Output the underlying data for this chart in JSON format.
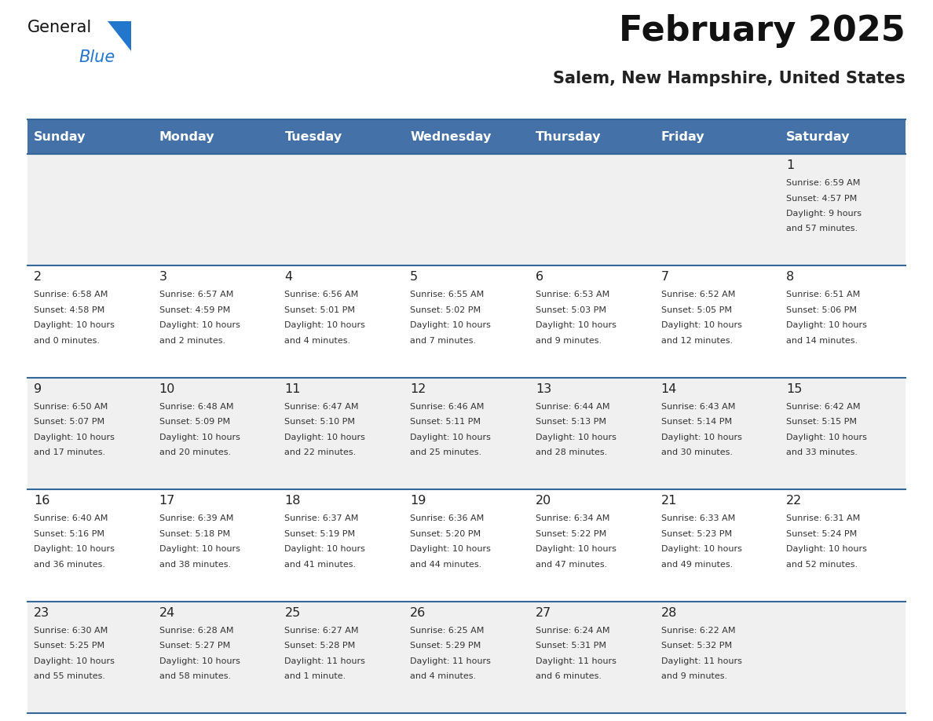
{
  "title": "February 2025",
  "subtitle": "Salem, New Hampshire, United States",
  "days_of_week": [
    "Sunday",
    "Monday",
    "Tuesday",
    "Wednesday",
    "Thursday",
    "Friday",
    "Saturday"
  ],
  "header_bg": "#4472A8",
  "header_text_color": "#FFFFFF",
  "cell_bg_odd": "#F0F0F0",
  "cell_bg_even": "#FFFFFF",
  "border_color": "#336699",
  "day_number_color": "#222222",
  "cell_text_color": "#333333",
  "title_color": "#111111",
  "subtitle_color": "#222222",
  "logo_general_color": "#111111",
  "logo_blue_color": "#2277CC",
  "logo_triangle_color": "#2277CC",
  "calendar": [
    [
      null,
      null,
      null,
      null,
      null,
      null,
      {
        "day": 1,
        "sunrise": "6:59 AM",
        "sunset": "4:57 PM",
        "daylight_line1": "Daylight: 9 hours",
        "daylight_line2": "and 57 minutes."
      }
    ],
    [
      {
        "day": 2,
        "sunrise": "6:58 AM",
        "sunset": "4:58 PM",
        "daylight_line1": "Daylight: 10 hours",
        "daylight_line2": "and 0 minutes."
      },
      {
        "day": 3,
        "sunrise": "6:57 AM",
        "sunset": "4:59 PM",
        "daylight_line1": "Daylight: 10 hours",
        "daylight_line2": "and 2 minutes."
      },
      {
        "day": 4,
        "sunrise": "6:56 AM",
        "sunset": "5:01 PM",
        "daylight_line1": "Daylight: 10 hours",
        "daylight_line2": "and 4 minutes."
      },
      {
        "day": 5,
        "sunrise": "6:55 AM",
        "sunset": "5:02 PM",
        "daylight_line1": "Daylight: 10 hours",
        "daylight_line2": "and 7 minutes."
      },
      {
        "day": 6,
        "sunrise": "6:53 AM",
        "sunset": "5:03 PM",
        "daylight_line1": "Daylight: 10 hours",
        "daylight_line2": "and 9 minutes."
      },
      {
        "day": 7,
        "sunrise": "6:52 AM",
        "sunset": "5:05 PM",
        "daylight_line1": "Daylight: 10 hours",
        "daylight_line2": "and 12 minutes."
      },
      {
        "day": 8,
        "sunrise": "6:51 AM",
        "sunset": "5:06 PM",
        "daylight_line1": "Daylight: 10 hours",
        "daylight_line2": "and 14 minutes."
      }
    ],
    [
      {
        "day": 9,
        "sunrise": "6:50 AM",
        "sunset": "5:07 PM",
        "daylight_line1": "Daylight: 10 hours",
        "daylight_line2": "and 17 minutes."
      },
      {
        "day": 10,
        "sunrise": "6:48 AM",
        "sunset": "5:09 PM",
        "daylight_line1": "Daylight: 10 hours",
        "daylight_line2": "and 20 minutes."
      },
      {
        "day": 11,
        "sunrise": "6:47 AM",
        "sunset": "5:10 PM",
        "daylight_line1": "Daylight: 10 hours",
        "daylight_line2": "and 22 minutes."
      },
      {
        "day": 12,
        "sunrise": "6:46 AM",
        "sunset": "5:11 PM",
        "daylight_line1": "Daylight: 10 hours",
        "daylight_line2": "and 25 minutes."
      },
      {
        "day": 13,
        "sunrise": "6:44 AM",
        "sunset": "5:13 PM",
        "daylight_line1": "Daylight: 10 hours",
        "daylight_line2": "and 28 minutes."
      },
      {
        "day": 14,
        "sunrise": "6:43 AM",
        "sunset": "5:14 PM",
        "daylight_line1": "Daylight: 10 hours",
        "daylight_line2": "and 30 minutes."
      },
      {
        "day": 15,
        "sunrise": "6:42 AM",
        "sunset": "5:15 PM",
        "daylight_line1": "Daylight: 10 hours",
        "daylight_line2": "and 33 minutes."
      }
    ],
    [
      {
        "day": 16,
        "sunrise": "6:40 AM",
        "sunset": "5:16 PM",
        "daylight_line1": "Daylight: 10 hours",
        "daylight_line2": "and 36 minutes."
      },
      {
        "day": 17,
        "sunrise": "6:39 AM",
        "sunset": "5:18 PM",
        "daylight_line1": "Daylight: 10 hours",
        "daylight_line2": "and 38 minutes."
      },
      {
        "day": 18,
        "sunrise": "6:37 AM",
        "sunset": "5:19 PM",
        "daylight_line1": "Daylight: 10 hours",
        "daylight_line2": "and 41 minutes."
      },
      {
        "day": 19,
        "sunrise": "6:36 AM",
        "sunset": "5:20 PM",
        "daylight_line1": "Daylight: 10 hours",
        "daylight_line2": "and 44 minutes."
      },
      {
        "day": 20,
        "sunrise": "6:34 AM",
        "sunset": "5:22 PM",
        "daylight_line1": "Daylight: 10 hours",
        "daylight_line2": "and 47 minutes."
      },
      {
        "day": 21,
        "sunrise": "6:33 AM",
        "sunset": "5:23 PM",
        "daylight_line1": "Daylight: 10 hours",
        "daylight_line2": "and 49 minutes."
      },
      {
        "day": 22,
        "sunrise": "6:31 AM",
        "sunset": "5:24 PM",
        "daylight_line1": "Daylight: 10 hours",
        "daylight_line2": "and 52 minutes."
      }
    ],
    [
      {
        "day": 23,
        "sunrise": "6:30 AM",
        "sunset": "5:25 PM",
        "daylight_line1": "Daylight: 10 hours",
        "daylight_line2": "and 55 minutes."
      },
      {
        "day": 24,
        "sunrise": "6:28 AM",
        "sunset": "5:27 PM",
        "daylight_line1": "Daylight: 10 hours",
        "daylight_line2": "and 58 minutes."
      },
      {
        "day": 25,
        "sunrise": "6:27 AM",
        "sunset": "5:28 PM",
        "daylight_line1": "Daylight: 11 hours",
        "daylight_line2": "and 1 minute."
      },
      {
        "day": 26,
        "sunrise": "6:25 AM",
        "sunset": "5:29 PM",
        "daylight_line1": "Daylight: 11 hours",
        "daylight_line2": "and 4 minutes."
      },
      {
        "day": 27,
        "sunrise": "6:24 AM",
        "sunset": "5:31 PM",
        "daylight_line1": "Daylight: 11 hours",
        "daylight_line2": "and 6 minutes."
      },
      {
        "day": 28,
        "sunrise": "6:22 AM",
        "sunset": "5:32 PM",
        "daylight_line1": "Daylight: 11 hours",
        "daylight_line2": "and 9 minutes."
      },
      null
    ]
  ]
}
